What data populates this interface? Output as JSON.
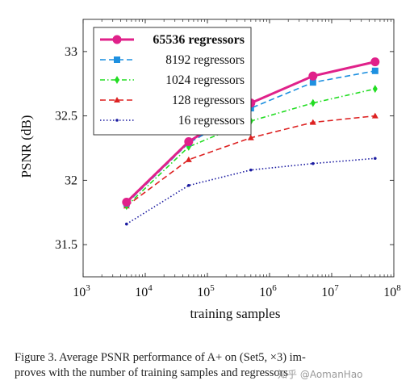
{
  "chart_data": {
    "type": "line",
    "xlabel": "training samples",
    "ylabel": "PSNR (dB)",
    "x_scale": "log",
    "xlim": [
      1000,
      100000000
    ],
    "ylim": [
      31.25,
      33.25
    ],
    "x_ticks": [
      {
        "value": 1000,
        "base": "10",
        "exp": "3"
      },
      {
        "value": 10000,
        "base": "10",
        "exp": "4"
      },
      {
        "value": 100000,
        "base": "10",
        "exp": "5"
      },
      {
        "value": 1000000,
        "base": "10",
        "exp": "6"
      },
      {
        "value": 10000000,
        "base": "10",
        "exp": "7"
      },
      {
        "value": 100000000,
        "base": "10",
        "exp": "8"
      }
    ],
    "y_ticks": [
      {
        "value": 31.5,
        "label": "31.5"
      },
      {
        "value": 32,
        "label": "32"
      },
      {
        "value": 32.5,
        "label": "32.5"
      },
      {
        "value": 33,
        "label": "33"
      }
    ],
    "grid": false,
    "legend_position": "top-left",
    "series": [
      {
        "name": "65536 regressors",
        "color": "#e0218a",
        "dash": "solid",
        "marker": "circle",
        "bold": true,
        "x": [
          5000,
          50000,
          500000,
          5000000,
          50000000
        ],
        "y": [
          31.83,
          32.3,
          32.6,
          32.81,
          32.92
        ]
      },
      {
        "name": "8192 regressors",
        "color": "#1e90e0",
        "dash": "dashed",
        "marker": "square",
        "bold": false,
        "x": [
          5000,
          50000,
          500000,
          5000000,
          50000000
        ],
        "y": [
          31.82,
          32.29,
          32.56,
          32.76,
          32.85
        ]
      },
      {
        "name": "1024 regressors",
        "color": "#22dd22",
        "dash": "dashdot",
        "marker": "diamond",
        "bold": false,
        "x": [
          5000,
          50000,
          500000,
          5000000,
          50000000
        ],
        "y": [
          31.8,
          32.26,
          32.46,
          32.6,
          32.71
        ]
      },
      {
        "name": "128 regressors",
        "color": "#dd2222",
        "dash": "dashed",
        "marker": "triangle",
        "bold": false,
        "x": [
          5000,
          50000,
          500000,
          5000000,
          50000000
        ],
        "y": [
          31.8,
          32.16,
          32.33,
          32.45,
          32.5
        ]
      },
      {
        "name": "16 regressors",
        "color": "#1a1aa0",
        "dash": "dotted",
        "marker": "dot",
        "bold": false,
        "x": [
          5000,
          50000,
          500000,
          5000000,
          50000000
        ],
        "y": [
          31.66,
          31.96,
          32.08,
          32.13,
          32.17
        ]
      }
    ]
  },
  "caption": {
    "line1": "Figure 3. Average PSNR performance of A+ on (Set5, ×3) im-",
    "line2": "proves with the number of training samples and regressors"
  },
  "watermark": "知乎 @AomanHao"
}
